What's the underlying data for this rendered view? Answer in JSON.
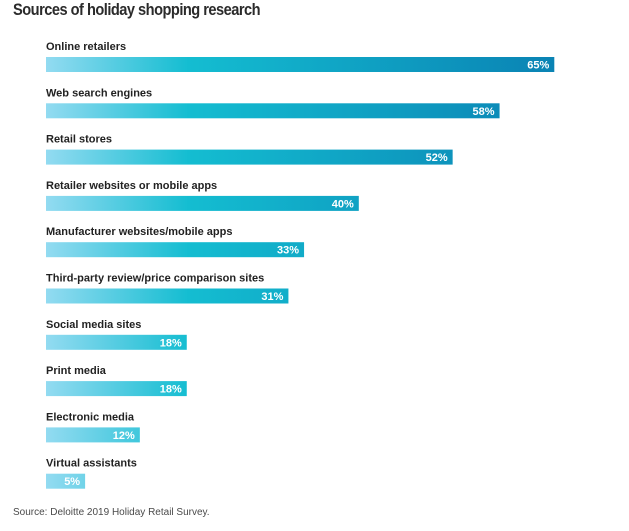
{
  "chart_data": {
    "type": "bar",
    "orientation": "horizontal",
    "title": "Sources of holiday shopping research",
    "categories": [
      "Online retailers",
      "Web search engines",
      "Retail stores",
      "Retailer websites or mobile apps",
      "Manufacturer websites/mobile apps",
      "Third-party review/price comparison sites",
      "Social media sites",
      "Print media",
      "Electronic media",
      "Virtual assistants"
    ],
    "values": [
      65,
      58,
      52,
      40,
      33,
      31,
      18,
      18,
      12,
      5
    ],
    "value_labels": [
      "65%",
      "58%",
      "52%",
      "40%",
      "33%",
      "31%",
      "18%",
      "18%",
      "12%",
      "5%"
    ],
    "xlim": [
      0,
      100
    ],
    "grid": false,
    "legend": "none",
    "colors": {
      "gradient_start": "#93dbf1",
      "gradient_mid": "#14bdd1",
      "gradient_end": "#0a83b4"
    }
  },
  "source": "Source: Deloitte 2019 Holiday Retail Survey."
}
